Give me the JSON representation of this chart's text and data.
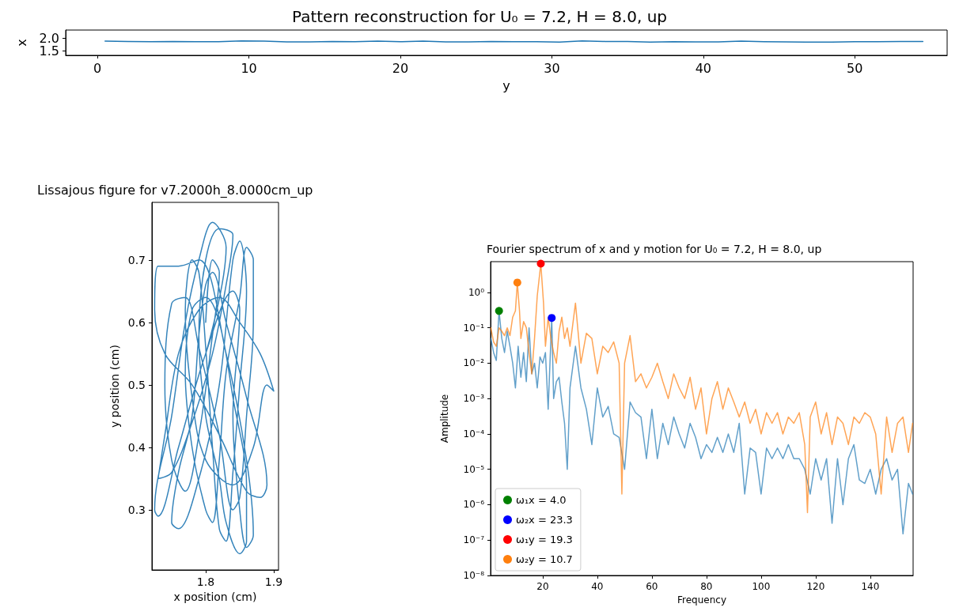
{
  "chart_data": [
    {
      "type": "line",
      "title": "Pattern reconstruction for U₀ = 7.2, H = 8.0, up",
      "xlabel": "y",
      "ylabel": "x",
      "x": [
        0.5,
        2,
        3.5,
        5,
        6.5,
        8,
        9.5,
        11,
        12.5,
        14,
        15.5,
        17,
        18.5,
        20,
        21.5,
        23,
        24.5,
        26,
        27.5,
        29,
        30.5,
        32,
        33.5,
        35,
        36.5,
        38,
        39.5,
        41,
        42.5,
        44,
        45.5,
        47,
        48.5,
        50,
        51.5,
        53,
        54.5
      ],
      "series": [
        {
          "color": "#1f77b4",
          "values": [
            1.88,
            1.87,
            1.86,
            1.87,
            1.86,
            1.86,
            1.89,
            1.88,
            1.85,
            1.85,
            1.87,
            1.86,
            1.88,
            1.86,
            1.88,
            1.85,
            1.85,
            1.87,
            1.86,
            1.86,
            1.84,
            1.89,
            1.87,
            1.87,
            1.84,
            1.86,
            1.85,
            1.85,
            1.88,
            1.86,
            1.85,
            1.84,
            1.84,
            1.86,
            1.86,
            1.87,
            1.87
          ]
        }
      ],
      "xlim": [
        -2.1,
        56.1
      ],
      "ylim": [
        1.32,
        2.32
      ],
      "xticks": [
        0,
        10,
        20,
        30,
        40,
        50
      ],
      "yticks": [
        {
          "value": 1.5,
          "label": "1.5"
        },
        {
          "value": 2,
          "label": "2.0"
        }
      ],
      "grid": false,
      "legend": false,
      "marker": "none",
      "line_style": "solid"
    },
    {
      "type": "line",
      "title": "Lissajous figure for v7.2000h_8.0000cm_up",
      "xlabel": "x position (cm)",
      "ylabel": "y position (cm)",
      "x": [
        1.8,
        1.83,
        1.81,
        1.79,
        1.77,
        1.75,
        1.725,
        1.73,
        1.76,
        1.8,
        1.84,
        1.85,
        1.84,
        1.85,
        1.86,
        1.87,
        1.86,
        1.83,
        1.79,
        1.76,
        1.73,
        1.725,
        1.74,
        1.78,
        1.82,
        1.86,
        1.88,
        1.89,
        1.86,
        1.83,
        1.81,
        1.8,
        1.79,
        1.78,
        1.76,
        1.75,
        1.76,
        1.79,
        1.82,
        1.84,
        1.85,
        1.86,
        1.85,
        1.84,
        1.83,
        1.82,
        1.81,
        1.8,
        1.79,
        1.78,
        1.77,
        1.78,
        1.8,
        1.84,
        1.87,
        1.89,
        1.9,
        1.88,
        1.85,
        1.82,
        1.79,
        1.76,
        1.74,
        1.73,
        1.75,
        1.78,
        1.81,
        1.83,
        1.84,
        1.82,
        1.8,
        1.79,
        1.8,
        1.82,
        1.83,
        1.85,
        1.86,
        1.86,
        1.84,
        1.82,
        1.8,
        1.78,
        1.77,
        1.78,
        1.8,
        1.81,
        1.82,
        1.83,
        1.85,
        1.86,
        1.87,
        1.87,
        1.86,
        1.85,
        1.84,
        1.82,
        1.79,
        1.77,
        1.75,
        1.74,
        1.75,
        1.77,
        1.79,
        1.81,
        1.82,
        1.81,
        1.8
      ],
      "series": [
        {
          "color": "#1f77b4",
          "values": [
            0.55,
            0.72,
            0.76,
            0.7,
            0.6,
            0.45,
            0.3,
            0.29,
            0.4,
            0.55,
            0.65,
            0.62,
            0.45,
            0.3,
            0.24,
            0.26,
            0.38,
            0.55,
            0.7,
            0.69,
            0.69,
            0.62,
            0.55,
            0.5,
            0.42,
            0.33,
            0.32,
            0.34,
            0.48,
            0.6,
            0.68,
            0.66,
            0.58,
            0.45,
            0.36,
            0.28,
            0.27,
            0.35,
            0.5,
            0.7,
            0.73,
            0.65,
            0.5,
            0.36,
            0.25,
            0.27,
            0.4,
            0.56,
            0.68,
            0.7,
            0.62,
            0.48,
            0.38,
            0.34,
            0.4,
            0.5,
            0.49,
            0.55,
            0.6,
            0.64,
            0.62,
            0.55,
            0.42,
            0.35,
            0.36,
            0.44,
            0.55,
            0.66,
            0.74,
            0.75,
            0.7,
            0.58,
            0.45,
            0.35,
            0.28,
            0.23,
            0.25,
            0.34,
            0.48,
            0.6,
            0.64,
            0.62,
            0.52,
            0.4,
            0.3,
            0.28,
            0.38,
            0.52,
            0.64,
            0.72,
            0.7,
            0.6,
            0.45,
            0.32,
            0.3,
            0.42,
            0.56,
            0.64,
            0.63,
            0.5,
            0.38,
            0.33,
            0.42,
            0.58,
            0.68,
            0.7,
            0.6
          ]
        }
      ],
      "xlim": [
        1.721,
        1.907
      ],
      "ylim": [
        0.204,
        0.792
      ],
      "xticks": [
        1.8,
        1.9
      ],
      "yticks": [
        0.3,
        0.4,
        0.5,
        0.6,
        0.7
      ],
      "grid": false,
      "legend": false,
      "marker": "none",
      "line_style": "solid"
    },
    {
      "type": "line",
      "title": "Fourier spectrum of x and y motion for U₀ = 7.2, H = 8.0, up",
      "xlabel": "Frequency",
      "ylabel": "Amplitude",
      "log": "y",
      "series": [
        {
          "color": "#1f77b4",
          "x": [
            1,
            2,
            3,
            4,
            5,
            6,
            7,
            8,
            9,
            10,
            11,
            12,
            13,
            14,
            15,
            16,
            17,
            18,
            19,
            20,
            21,
            22,
            23.3,
            24,
            25,
            26,
            27,
            28,
            29,
            30,
            32,
            34,
            36,
            38,
            40,
            42,
            44,
            46,
            48,
            50,
            52,
            54,
            56,
            58,
            60,
            62,
            64,
            66,
            68,
            70,
            72,
            74,
            76,
            78,
            80,
            82,
            84,
            86,
            88,
            90,
            92,
            94,
            96,
            98,
            100,
            102,
            104,
            106,
            108,
            110,
            112,
            114,
            116,
            118,
            120,
            122,
            124,
            126,
            128,
            130,
            132,
            134,
            136,
            138,
            140,
            142,
            144,
            146,
            148,
            150,
            152,
            154,
            155.5
          ],
          "values": [
            0.05,
            0.02,
            0.012,
            0.3,
            0.05,
            0.02,
            0.08,
            0.03,
            0.01,
            0.002,
            0.03,
            0.004,
            0.02,
            0.003,
            0.1,
            0.005,
            0.01,
            0.002,
            0.015,
            0.01,
            0.02,
            0.0005,
            0.19,
            0.001,
            0.003,
            0.004,
            0.0008,
            0.0002,
            1e-05,
            0.002,
            0.03,
            0.002,
            0.0005,
            5e-05,
            0.002,
            0.0003,
            0.0006,
            0.0001,
            8e-05,
            1e-05,
            0.0008,
            0.0004,
            0.0003,
            2e-05,
            0.0005,
            2e-05,
            0.0002,
            5e-05,
            0.0003,
            0.0001,
            4e-05,
            0.0002,
            8e-05,
            2e-05,
            5e-05,
            3e-05,
            8e-05,
            3e-05,
            0.0001,
            3e-05,
            0.0002,
            2e-06,
            4e-05,
            3e-05,
            2e-06,
            4e-05,
            2e-05,
            4e-05,
            2e-05,
            5e-05,
            2e-05,
            2e-05,
            1e-05,
            2e-06,
            2e-05,
            5e-06,
            2e-05,
            3e-07,
            2e-05,
            1e-06,
            2e-05,
            5e-05,
            5e-06,
            4e-06,
            1e-05,
            2e-06,
            1e-05,
            2e-05,
            5e-06,
            1e-05,
            1.5e-07,
            4e-06,
            2e-06
          ]
        },
        {
          "color": "#ff7f0e",
          "x": [
            1,
            2,
            3,
            4,
            5,
            6,
            7,
            8,
            9,
            10,
            10.7,
            11.5,
            12,
            13,
            14,
            15,
            16,
            17,
            18,
            19.3,
            20.3,
            21,
            22,
            23,
            24,
            25,
            26,
            27,
            28,
            29,
            30,
            32,
            34,
            36,
            38,
            40,
            42,
            44,
            46,
            48,
            49,
            50,
            52,
            54,
            56,
            58,
            60,
            62,
            64,
            66,
            68,
            70,
            72,
            74,
            76,
            78,
            80,
            82,
            84,
            86,
            88,
            90,
            92,
            94,
            96,
            98,
            100,
            102,
            104,
            106,
            108,
            110,
            112,
            114,
            116,
            117,
            118,
            120,
            122,
            124,
            126,
            128,
            130,
            132,
            134,
            136,
            138,
            140,
            142,
            144,
            146,
            148,
            150,
            152,
            154,
            155.5
          ],
          "values": [
            0.1,
            0.04,
            0.03,
            0.1,
            0.08,
            0.06,
            0.1,
            0.06,
            0.2,
            0.3,
            1.9,
            0.3,
            0.05,
            0.15,
            0.1,
            0.02,
            0.005,
            0.05,
            0.8,
            6.5,
            0.5,
            0.03,
            0.2,
            0.05,
            0.02,
            0.01,
            0.08,
            0.2,
            0.05,
            0.1,
            0.03,
            0.5,
            0.01,
            0.07,
            0.05,
            0.005,
            0.03,
            0.02,
            0.04,
            0.01,
            2e-06,
            0.01,
            0.06,
            0.003,
            0.005,
            0.002,
            0.004,
            0.01,
            0.003,
            0.001,
            0.005,
            0.002,
            0.001,
            0.004,
            0.0005,
            0.002,
            0.0001,
            0.001,
            0.003,
            0.0005,
            0.002,
            0.0008,
            0.0003,
            0.0008,
            0.0002,
            0.0005,
            0.0001,
            0.0004,
            0.0002,
            0.0004,
            0.0001,
            0.0003,
            0.0002,
            0.0004,
            5e-05,
            6e-07,
            0.0003,
            0.0008,
            0.0001,
            0.0004,
            5e-05,
            0.0003,
            0.0002,
            5e-05,
            0.0003,
            0.0002,
            0.0004,
            0.0003,
            0.0001,
            2e-06,
            0.0003,
            3e-05,
            0.0002,
            0.0003,
            3e-05,
            0.0002
          ]
        },
        {
          "type": "scatter",
          "marker": "circle",
          "name": "ω₁x = 4.0",
          "color": "#008000",
          "x": [
            4.0
          ],
          "values": [
            0.3
          ]
        },
        {
          "type": "scatter",
          "marker": "circle",
          "name": "ω₂x = 23.3",
          "color": "#0000ff",
          "x": [
            23.3
          ],
          "values": [
            0.19
          ]
        },
        {
          "type": "scatter",
          "marker": "circle",
          "name": "ω₁y = 19.3",
          "color": "#ff0000",
          "x": [
            19.3
          ],
          "values": [
            6.5
          ]
        },
        {
          "type": "scatter",
          "marker": "circle",
          "name": "ω₂y = 10.7",
          "color": "#ff7f0e",
          "x": [
            10.7
          ],
          "values": [
            1.9
          ]
        }
      ],
      "xlim": [
        0.9,
        155.7
      ],
      "ylim": [
        1e-08,
        7.4
      ],
      "xticks": [
        20,
        40,
        60,
        80,
        100,
        120,
        140
      ],
      "yticks": [
        {
          "value": 1e-08,
          "label": "10⁻⁸"
        },
        {
          "value": 1e-07,
          "label": "10⁻⁷"
        },
        {
          "value": 1e-06,
          "label": "10⁻⁶"
        },
        {
          "value": 1e-05,
          "label": "10⁻⁵"
        },
        {
          "value": 0.0001,
          "label": "10⁻⁴"
        },
        {
          "value": 0.001,
          "label": "10⁻³"
        },
        {
          "value": 0.01,
          "label": "10⁻²"
        },
        {
          "value": 0.1,
          "label": "10⁻¹"
        },
        {
          "value": 1,
          "label": "10⁰"
        }
      ],
      "grid": false,
      "legend": "bottom left",
      "marker": "none",
      "line_style": "solid"
    }
  ]
}
